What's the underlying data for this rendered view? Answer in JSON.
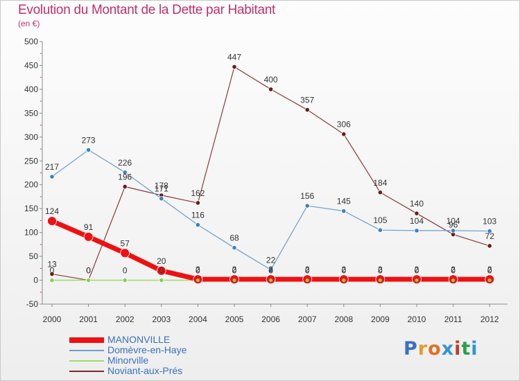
{
  "header": {
    "title": "Evolution du Montant de la Dette par Habitant",
    "subtitle": "(en €)"
  },
  "logo": {
    "text": "Proxiti",
    "letter_colors": [
      "#3a6fc4",
      "#e0a020",
      "#e07020",
      "#2f95d6",
      "#c33a2a",
      "#2aa04a",
      "#2f95d6"
    ]
  },
  "chart_data": {
    "type": "line",
    "title": "Evolution du Montant de la Dette par Habitant",
    "subtitle": "(en €)",
    "xlabel": "",
    "ylabel": "",
    "x": [
      "2000",
      "2001",
      "2002",
      "2003",
      "2004",
      "2005",
      "2006",
      "2007",
      "2008",
      "2009",
      "2010",
      "2011",
      "2012"
    ],
    "ylim": [
      -50,
      500
    ],
    "yticks": [
      -50,
      0,
      50,
      100,
      150,
      200,
      250,
      300,
      350,
      400,
      450,
      500
    ],
    "grid": false,
    "legend_position": "bottom-left",
    "series": [
      {
        "name": "MANONVILLE",
        "color": "#ee1111",
        "values": [
          124,
          91,
          57,
          20,
          2,
          2,
          2,
          2,
          2,
          2,
          2,
          2,
          2
        ],
        "labels": [
          "124",
          "91",
          "57",
          "20",
          "2",
          "2",
          "2",
          "2",
          "2",
          "2",
          "2",
          "2",
          "2"
        ]
      },
      {
        "name": "Domèvre-en-Haye",
        "color": "#6a9fd0",
        "values": [
          217,
          273,
          226,
          171,
          116,
          68,
          22,
          156,
          145,
          105,
          104,
          104,
          103
        ],
        "labels": [
          "217",
          "273",
          "226",
          "171",
          "116",
          "68",
          "22",
          "156",
          "145",
          "105",
          "104",
          "104",
          "103"
        ]
      },
      {
        "name": "Minorville",
        "color": "#99dd66",
        "values": [
          0,
          0,
          0,
          0,
          0,
          0,
          0,
          0,
          0,
          0,
          0,
          0,
          0
        ],
        "labels": [
          "0",
          "0",
          "0",
          "0",
          "0",
          "0",
          "0",
          "0",
          "0",
          "0",
          "0",
          "0",
          "0"
        ]
      },
      {
        "name": "Noviant-aux-Prés",
        "color": "#7a2a2a",
        "values": [
          13,
          0,
          196,
          178,
          162,
          447,
          400,
          357,
          306,
          184,
          140,
          96,
          72
        ],
        "labels": [
          "13",
          "0",
          "196",
          "178",
          "162",
          "447",
          "400",
          "357",
          "306",
          "184",
          "140",
          "96",
          "72"
        ]
      }
    ]
  }
}
